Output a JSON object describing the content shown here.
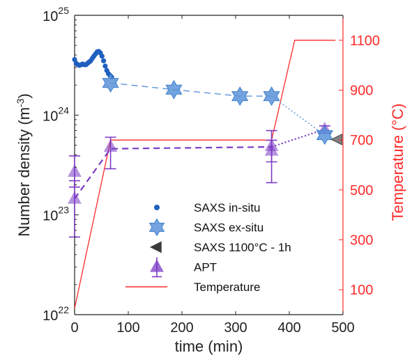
{
  "chart_data": {
    "type": "scatter",
    "xlabel": "time (min)",
    "ylabel_left": {
      "base": "Number density (m",
      "sup": "-3",
      "tail": ")"
    },
    "ylabel_right": "Temperature (°C)",
    "xlim": [
      0,
      500
    ],
    "xticks": [
      0,
      100,
      200,
      300,
      400,
      500
    ],
    "ylim_left": [
      1e+22,
      1e+25
    ],
    "ylim_left_scale": "log",
    "yticks_left": [
      {
        "value": 1e+22,
        "base": "10",
        "exp": "22"
      },
      {
        "value": 1e+23,
        "base": "10",
        "exp": "23"
      },
      {
        "value": 1e+24,
        "base": "10",
        "exp": "24"
      },
      {
        "value": 1e+25,
        "base": "10",
        "exp": "25"
      }
    ],
    "ylim_right": [
      0,
      1200
    ],
    "yticks_right": [
      100,
      300,
      500,
      700,
      900,
      1100
    ],
    "legend_position": "lower-center",
    "colors": {
      "in_situ": "#1f5fbf",
      "ex_situ": "#5b93d8",
      "gray": "#808080",
      "apt": "#7a3bc4",
      "temperature": "#ff2a2a",
      "axis_left": "#222222"
    },
    "series": [
      {
        "name": "SAXS in-situ",
        "marker": "dot",
        "axis": "left",
        "x": [
          0,
          3,
          6,
          9,
          12,
          15,
          18,
          21,
          24,
          27,
          30,
          33,
          36,
          39,
          42,
          45,
          48,
          51,
          54,
          57,
          60,
          63,
          66,
          69
        ],
        "y": [
          3.6e+24,
          3.3e+24,
          3.2e+24,
          3.15e+24,
          3.2e+24,
          3.25e+24,
          3.2e+24,
          3.2e+24,
          3.3e+24,
          3.4e+24,
          3.5e+24,
          3.7e+24,
          3.9e+24,
          4.1e+24,
          4.3e+24,
          4.35e+24,
          4.2e+24,
          3.9e+24,
          3.5e+24,
          3.1e+24,
          2.8e+24,
          2.6e+24,
          2.5e+24,
          2.4e+24
        ]
      },
      {
        "name": "SAXS ex-situ",
        "marker": "hexagram",
        "axis": "left",
        "x": [
          67,
          185,
          308,
          367,
          466
        ],
        "y": [
          2.1e+24,
          1.8e+24,
          1.55e+24,
          1.55e+24,
          6.3e+23
        ],
        "line": [
          {
            "from": 0,
            "to": 3,
            "style": "dashed"
          },
          {
            "from": 3,
            "to": 4,
            "style": "dotted"
          }
        ]
      },
      {
        "name": "SAXS 1100°C - 1h",
        "marker": "triangle-left",
        "axis": "left",
        "x": [
          490
        ],
        "y": [
          5.7e+23
        ]
      },
      {
        "name": "APT",
        "marker": "triangle-up",
        "axis": "left",
        "points": [
          {
            "x": 0,
            "y": 2.7e+23,
            "lo": 1.9e+23,
            "hi": 3.9e+23
          },
          {
            "x": 0,
            "y": 1.45e+23,
            "lo": 6e+22,
            "hi": 2.2e+23
          },
          {
            "x": 67,
            "y": 4.8e+23,
            "lo": 2.9e+23,
            "hi": 6e+23
          },
          {
            "x": 367,
            "y": 4.9e+23,
            "lo": 3.4e+23,
            "hi": 7e+23
          },
          {
            "x": 367,
            "y": 4.4e+23,
            "lo": 2.1e+23,
            "hi": 5.6e+23
          },
          {
            "x": 466,
            "y": 7.2e+23,
            "lo": 6.6e+23,
            "hi": 7.8e+23
          }
        ],
        "line": [
          {
            "x": [
              0,
              67,
              367
            ],
            "y": [
              1.45e+23,
              4.6e+23,
              4.8e+23
            ],
            "style": "dashed"
          },
          {
            "x": [
              367,
              466
            ],
            "y": [
              4.8e+23,
              7.2e+23
            ],
            "style": "dotted"
          }
        ]
      },
      {
        "name": "Temperature",
        "marker": "line",
        "axis": "right",
        "x": [
          0,
          67,
          367,
          410,
          486
        ],
        "y": [
          25,
          700,
          700,
          1100,
          1100
        ]
      }
    ],
    "legend": [
      {
        "label": "SAXS in-situ",
        "marker": "dot"
      },
      {
        "label": "SAXS ex-situ",
        "marker": "hexagram"
      },
      {
        "label": "SAXS 1100°C - 1h",
        "marker": "triangle-left"
      },
      {
        "label": "APT",
        "marker": "triangle-up"
      },
      {
        "label": "Temperature",
        "marker": "line"
      }
    ]
  }
}
